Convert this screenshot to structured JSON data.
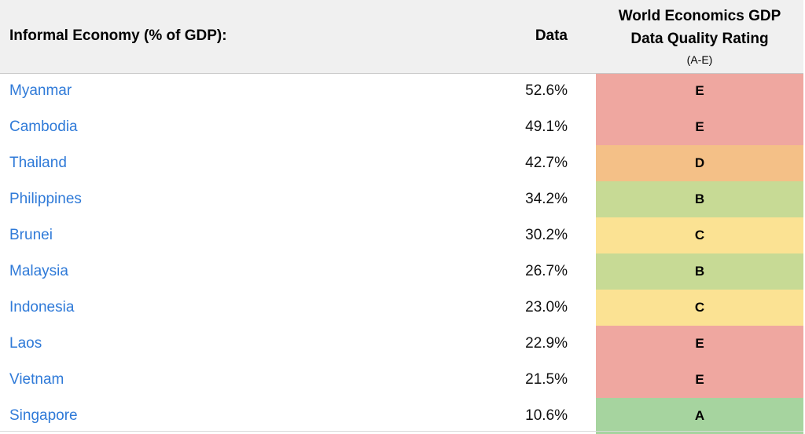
{
  "header": {
    "country_label": "Informal Economy (% of GDP):",
    "data_label": "Data",
    "rating_label_line1": "World Economics GDP",
    "rating_label_line2": "Data Quality Rating",
    "rating_scale": "(A-E)"
  },
  "rating_colors": {
    "A": "#a6d49f",
    "B": "#c7da95",
    "C": "#fbe293",
    "D": "#f4c087",
    "E": "#efa7a0"
  },
  "link_color": "#2f7ad8",
  "rows": [
    {
      "country": "Myanmar",
      "value": "52.6%",
      "rating": "E"
    },
    {
      "country": "Cambodia",
      "value": "49.1%",
      "rating": "E"
    },
    {
      "country": "Thailand",
      "value": "42.7%",
      "rating": "D"
    },
    {
      "country": "Philippines",
      "value": "34.2%",
      "rating": "B"
    },
    {
      "country": "Brunei",
      "value": "30.2%",
      "rating": "C"
    },
    {
      "country": "Malaysia",
      "value": "26.7%",
      "rating": "B"
    },
    {
      "country": "Indonesia",
      "value": "23.0%",
      "rating": "C"
    },
    {
      "country": "Laos",
      "value": "22.9%",
      "rating": "E"
    },
    {
      "country": "Vietnam",
      "value": "21.5%",
      "rating": "E"
    },
    {
      "country": "Singapore",
      "value": "10.6%",
      "rating": "A"
    }
  ]
}
